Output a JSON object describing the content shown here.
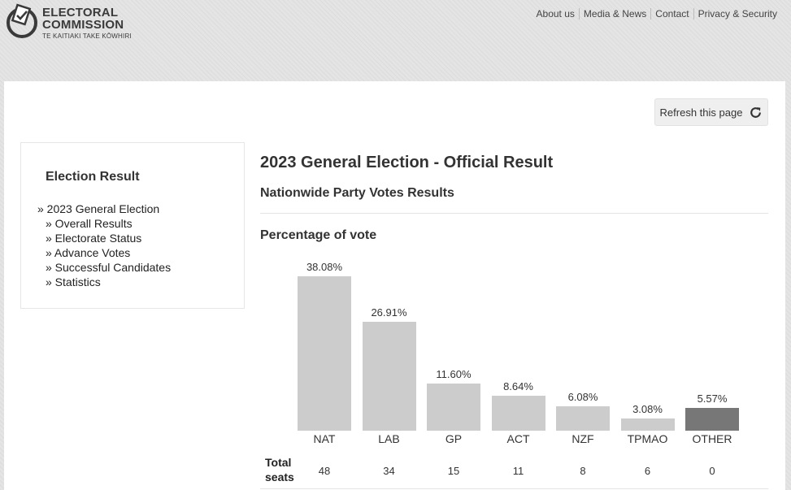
{
  "header": {
    "logo_line1": "ELECTORAL",
    "logo_line2": "COMMISSION",
    "logo_line3": "TE KAITIAKI TAKE KŌWHIRI",
    "nav": [
      "About us",
      "Media & News",
      "Contact",
      "Privacy & Security"
    ]
  },
  "refresh": {
    "label": "Refresh this page",
    "icon": "refresh-icon"
  },
  "sidebar": {
    "title": "Election Result",
    "items": [
      {
        "label": "» 2023 General Election",
        "level": 0
      },
      {
        "label": "» Overall Results",
        "level": 1
      },
      {
        "label": "» Electorate Status",
        "level": 1
      },
      {
        "label": "» Advance Votes",
        "level": 1
      },
      {
        "label": "» Successful Candidates",
        "level": 1
      },
      {
        "label": "» Statistics",
        "level": 1
      }
    ]
  },
  "main": {
    "title": "2023 General Election - Official Result",
    "section": "Nationwide Party Votes Results",
    "chart_title": "Percentage of vote",
    "seats_label_line1": "Total",
    "seats_label_line2": "seats"
  },
  "chart_data": {
    "type": "bar",
    "title": "Percentage of vote",
    "categories": [
      "NAT",
      "LAB",
      "GP",
      "ACT",
      "NZF",
      "TPMAO",
      "OTHER"
    ],
    "values": [
      38.08,
      26.91,
      11.6,
      8.64,
      6.08,
      3.08,
      5.57
    ],
    "value_labels": [
      "38.08%",
      "26.91%",
      "11.60%",
      "8.64%",
      "6.08%",
      "3.08%",
      "5.57%"
    ],
    "seats": [
      "48",
      "34",
      "15",
      "11",
      "8",
      "6",
      "0"
    ],
    "ylim": [
      0,
      38.08
    ],
    "colors": {
      "default": "#cccccc",
      "other": "#777777"
    }
  }
}
